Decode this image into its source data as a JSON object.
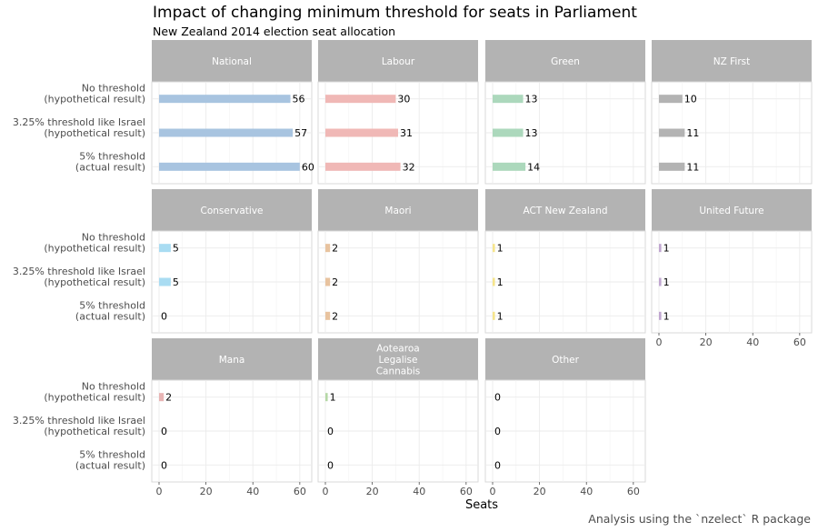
{
  "chart_data": {
    "type": "bar",
    "orientation": "horizontal",
    "faceted": true,
    "title": "Impact of changing minimum threshold for seats in Parliament",
    "subtitle": "New Zealand 2014 election seat allocation",
    "xlabel": "Seats",
    "ylabel": "",
    "caption": "Analysis using the `nzelect` R package",
    "xlim": [
      0,
      62
    ],
    "x_ticks": [
      0,
      20,
      40,
      60
    ],
    "grid": true,
    "categories": [
      "No threshold\n(hypothetical result)",
      "3.25% threshold like Israel\n(hypothetical result)",
      "5% threshold\n(actual result)"
    ],
    "panels": [
      {
        "name": "National",
        "values": [
          56,
          57,
          60
        ],
        "color": "#a8c4e0"
      },
      {
        "name": "Labour",
        "values": [
          30,
          31,
          32
        ],
        "color": "#f0b8b6"
      },
      {
        "name": "Green",
        "values": [
          13,
          13,
          14
        ],
        "color": "#acd8bc"
      },
      {
        "name": "NZ First",
        "values": [
          10,
          11,
          11
        ],
        "color": "#b3b3b3"
      },
      {
        "name": "Conservative",
        "values": [
          5,
          5,
          0
        ],
        "color": "#a9dcf2"
      },
      {
        "name": "Maori",
        "values": [
          2,
          2,
          2
        ],
        "color": "#e8c39f"
      },
      {
        "name": "ACT New Zealand",
        "values": [
          1,
          1,
          1
        ],
        "color": "#f6e58c"
      },
      {
        "name": "United Future",
        "values": [
          1,
          1,
          1
        ],
        "color": "#c0a6d0"
      },
      {
        "name": "Mana",
        "values": [
          2,
          0,
          0
        ],
        "color": "#e8b4b4"
      },
      {
        "name": "Aotearoa\nLegalise\nCannabis",
        "values": [
          1,
          0,
          0
        ],
        "color": "#b5d8a6"
      },
      {
        "name": "Other",
        "values": [
          0,
          0,
          0
        ],
        "color": "#d0d0d0"
      }
    ]
  }
}
